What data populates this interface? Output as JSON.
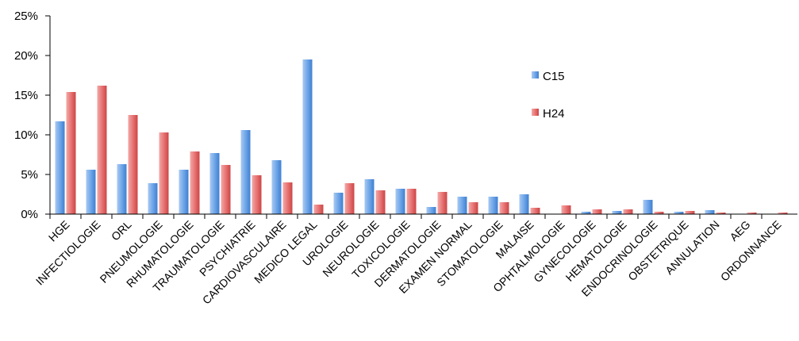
{
  "chart_data": {
    "type": "bar",
    "title": "",
    "xlabel": "",
    "ylabel": "",
    "ylim": [
      0,
      0.25
    ],
    "yticks": [
      "0%",
      "5%",
      "10%",
      "15%",
      "20%",
      "25%"
    ],
    "grid": false,
    "legend": "inside-right",
    "categories": [
      "HGE",
      "INFECTIOLOGIE",
      "ORL",
      "PNEUMOLOGIE",
      "RHUMATOLOGIE",
      "TRAUMATOLOGIE",
      "PSYCHIATRIE",
      "CARDIOVASCULAIRE",
      "MEDICO LEGAL",
      "UROLOGIE",
      "NEUROLOGIE",
      "TOXICOLOGIE",
      "DERMATOLOGIE",
      "EXAMEN NORMAL",
      "STOMATOLOGIE",
      "MALAISE",
      "OPHTALMOLOGIE",
      "GYNECOLOGIE",
      "HEMATOLOGIE",
      "ENDOCRINOLOGIE",
      "OBSTETRIQUE",
      "ANNULATION",
      "AEG",
      "ORDONNANCE"
    ],
    "series": [
      {
        "name": "C15",
        "color": "#5b9bd5",
        "values": [
          0.117,
          0.056,
          0.063,
          0.039,
          0.056,
          0.077,
          0.106,
          0.068,
          0.195,
          0.027,
          0.044,
          0.032,
          0.009,
          0.022,
          0.022,
          0.025,
          0.0,
          0.003,
          0.004,
          0.018,
          0.003,
          0.005,
          0.0,
          0.0
        ]
      },
      {
        "name": "H24",
        "color": "#e06666",
        "values": [
          0.154,
          0.162,
          0.125,
          0.103,
          0.079,
          0.062,
          0.049,
          0.04,
          0.012,
          0.039,
          0.03,
          0.032,
          0.028,
          0.015,
          0.015,
          0.008,
          0.011,
          0.006,
          0.006,
          0.003,
          0.004,
          0.002,
          0.002,
          0.002
        ]
      }
    ]
  }
}
